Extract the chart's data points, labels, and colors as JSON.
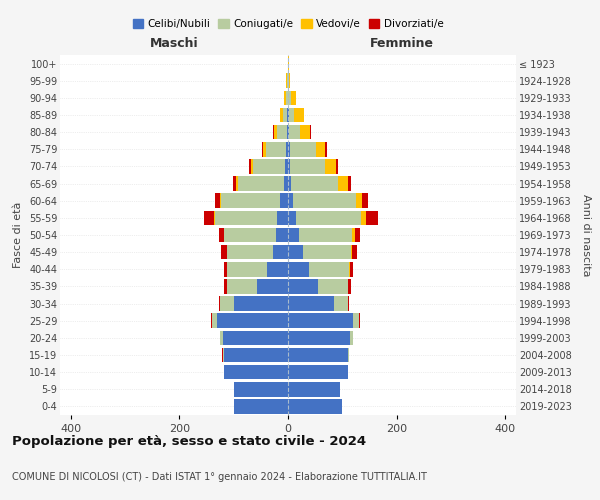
{
  "age_groups": [
    "0-4",
    "5-9",
    "10-14",
    "15-19",
    "20-24",
    "25-29",
    "30-34",
    "35-39",
    "40-44",
    "45-49",
    "50-54",
    "55-59",
    "60-64",
    "65-69",
    "70-74",
    "75-79",
    "80-84",
    "85-89",
    "90-94",
    "95-99",
    "100+"
  ],
  "birth_years": [
    "2019-2023",
    "2014-2018",
    "2009-2013",
    "2004-2008",
    "1999-2003",
    "1994-1998",
    "1989-1993",
    "1984-1988",
    "1979-1983",
    "1974-1978",
    "1969-1973",
    "1964-1968",
    "1959-1963",
    "1954-1958",
    "1949-1953",
    "1944-1948",
    "1939-1943",
    "1934-1938",
    "1929-1933",
    "1924-1928",
    "≤ 1923"
  ],
  "male_celibi": [
    100,
    100,
    118,
    118,
    120,
    130,
    100,
    58,
    38,
    28,
    22,
    20,
    14,
    8,
    5,
    3,
    2,
    1,
    0,
    0,
    0
  ],
  "male_coniugati": [
    0,
    0,
    0,
    2,
    5,
    10,
    25,
    55,
    75,
    85,
    95,
    115,
    110,
    85,
    60,
    38,
    18,
    8,
    4,
    2,
    0
  ],
  "male_vedovi": [
    0,
    0,
    0,
    0,
    0,
    0,
    0,
    0,
    0,
    0,
    1,
    1,
    2,
    3,
    4,
    5,
    5,
    5,
    3,
    1,
    0
  ],
  "male_divorziati": [
    0,
    0,
    0,
    2,
    0,
    2,
    3,
    5,
    5,
    10,
    10,
    18,
    8,
    5,
    3,
    2,
    2,
    0,
    0,
    0,
    0
  ],
  "female_celibi": [
    100,
    95,
    110,
    110,
    115,
    120,
    85,
    55,
    38,
    28,
    20,
    15,
    10,
    5,
    4,
    3,
    2,
    1,
    0,
    0,
    0
  ],
  "female_coniugati": [
    0,
    0,
    0,
    2,
    5,
    10,
    25,
    55,
    75,
    88,
    98,
    120,
    115,
    88,
    65,
    48,
    20,
    10,
    5,
    1,
    0
  ],
  "female_vedovi": [
    0,
    0,
    0,
    0,
    0,
    0,
    0,
    1,
    1,
    2,
    5,
    8,
    12,
    18,
    20,
    18,
    18,
    18,
    10,
    2,
    1
  ],
  "female_divorziati": [
    0,
    0,
    0,
    0,
    0,
    2,
    3,
    5,
    5,
    10,
    10,
    22,
    10,
    5,
    3,
    2,
    2,
    0,
    0,
    0,
    0
  ],
  "colors": {
    "celibi": "#4472c4",
    "coniugati": "#b8cca0",
    "vedovi": "#ffc000",
    "divorziati": "#cc0000"
  },
  "xlim": 420,
  "title": "Popolazione per età, sesso e stato civile - 2024",
  "subtitle": "COMUNE DI NICOLOSI (CT) - Dati ISTAT 1° gennaio 2024 - Elaborazione TUTTITALIA.IT",
  "xlabel_left": "Maschi",
  "xlabel_right": "Femmine",
  "ylabel": "Fasce di età",
  "ylabel_right": "Anni di nascita",
  "legend_labels": [
    "Celibi/Nubili",
    "Coniugati/e",
    "Vedovi/e",
    "Divorziati/e"
  ],
  "bg_color": "#f5f5f5",
  "plot_bg_color": "#ffffff"
}
